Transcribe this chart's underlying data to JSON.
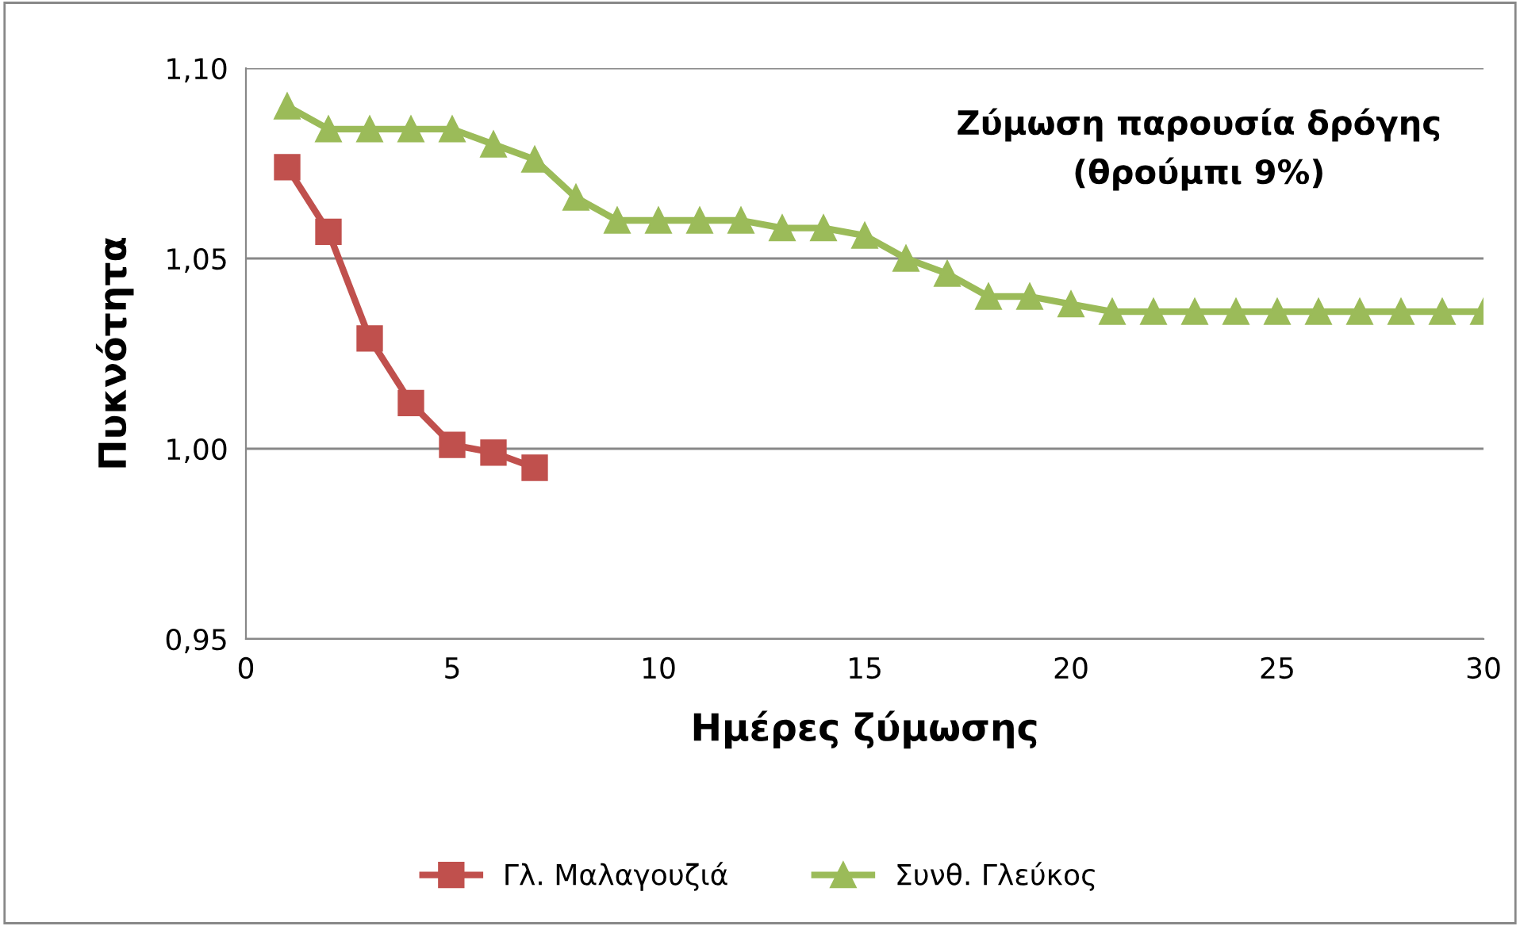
{
  "chart_data": {
    "type": "line",
    "xlabel": "Ημέρες ζύμωσης",
    "ylabel": "Πυκνότητα",
    "annotations": [
      "Ζύμωση παρουσία δρόγης\n(θρούμπι 9%)"
    ],
    "xlim": [
      0,
      30
    ],
    "xticks": [
      0,
      5,
      10,
      15,
      20,
      25,
      30
    ],
    "ylim": [
      0.95,
      1.1
    ],
    "yticks": [
      {
        "value": 0.95,
        "label": "0,95"
      },
      {
        "value": 1.0,
        "label": "1,00"
      },
      {
        "value": 1.05,
        "label": "1,05"
      },
      {
        "value": 1.1,
        "label": "1,10"
      }
    ],
    "grid": "y",
    "legend": "bottom",
    "series": [
      {
        "name": "Γλ. Μαλαγουζιά",
        "color": "#c0504d",
        "marker": "square",
        "x": [
          1,
          2,
          3,
          4,
          5,
          6,
          7
        ],
        "values": [
          1.074,
          1.057,
          1.029,
          1.012,
          1.001,
          0.999,
          0.995
        ]
      },
      {
        "name": "Συνθ. Γλεύκος",
        "color": "#9bbb59",
        "marker": "triangle",
        "x": [
          1,
          2,
          3,
          4,
          5,
          6,
          7,
          8,
          9,
          10,
          11,
          12,
          13,
          14,
          15,
          16,
          17,
          18,
          19,
          20,
          21,
          22,
          23,
          24,
          25,
          26,
          27,
          28,
          29,
          30
        ],
        "values": [
          1.09,
          1.084,
          1.084,
          1.084,
          1.084,
          1.08,
          1.076,
          1.066,
          1.06,
          1.06,
          1.06,
          1.06,
          1.058,
          1.058,
          1.056,
          1.05,
          1.046,
          1.04,
          1.04,
          1.038,
          1.036,
          1.036,
          1.036,
          1.036,
          1.036,
          1.036,
          1.036,
          1.036,
          1.036,
          1.036
        ]
      }
    ]
  }
}
